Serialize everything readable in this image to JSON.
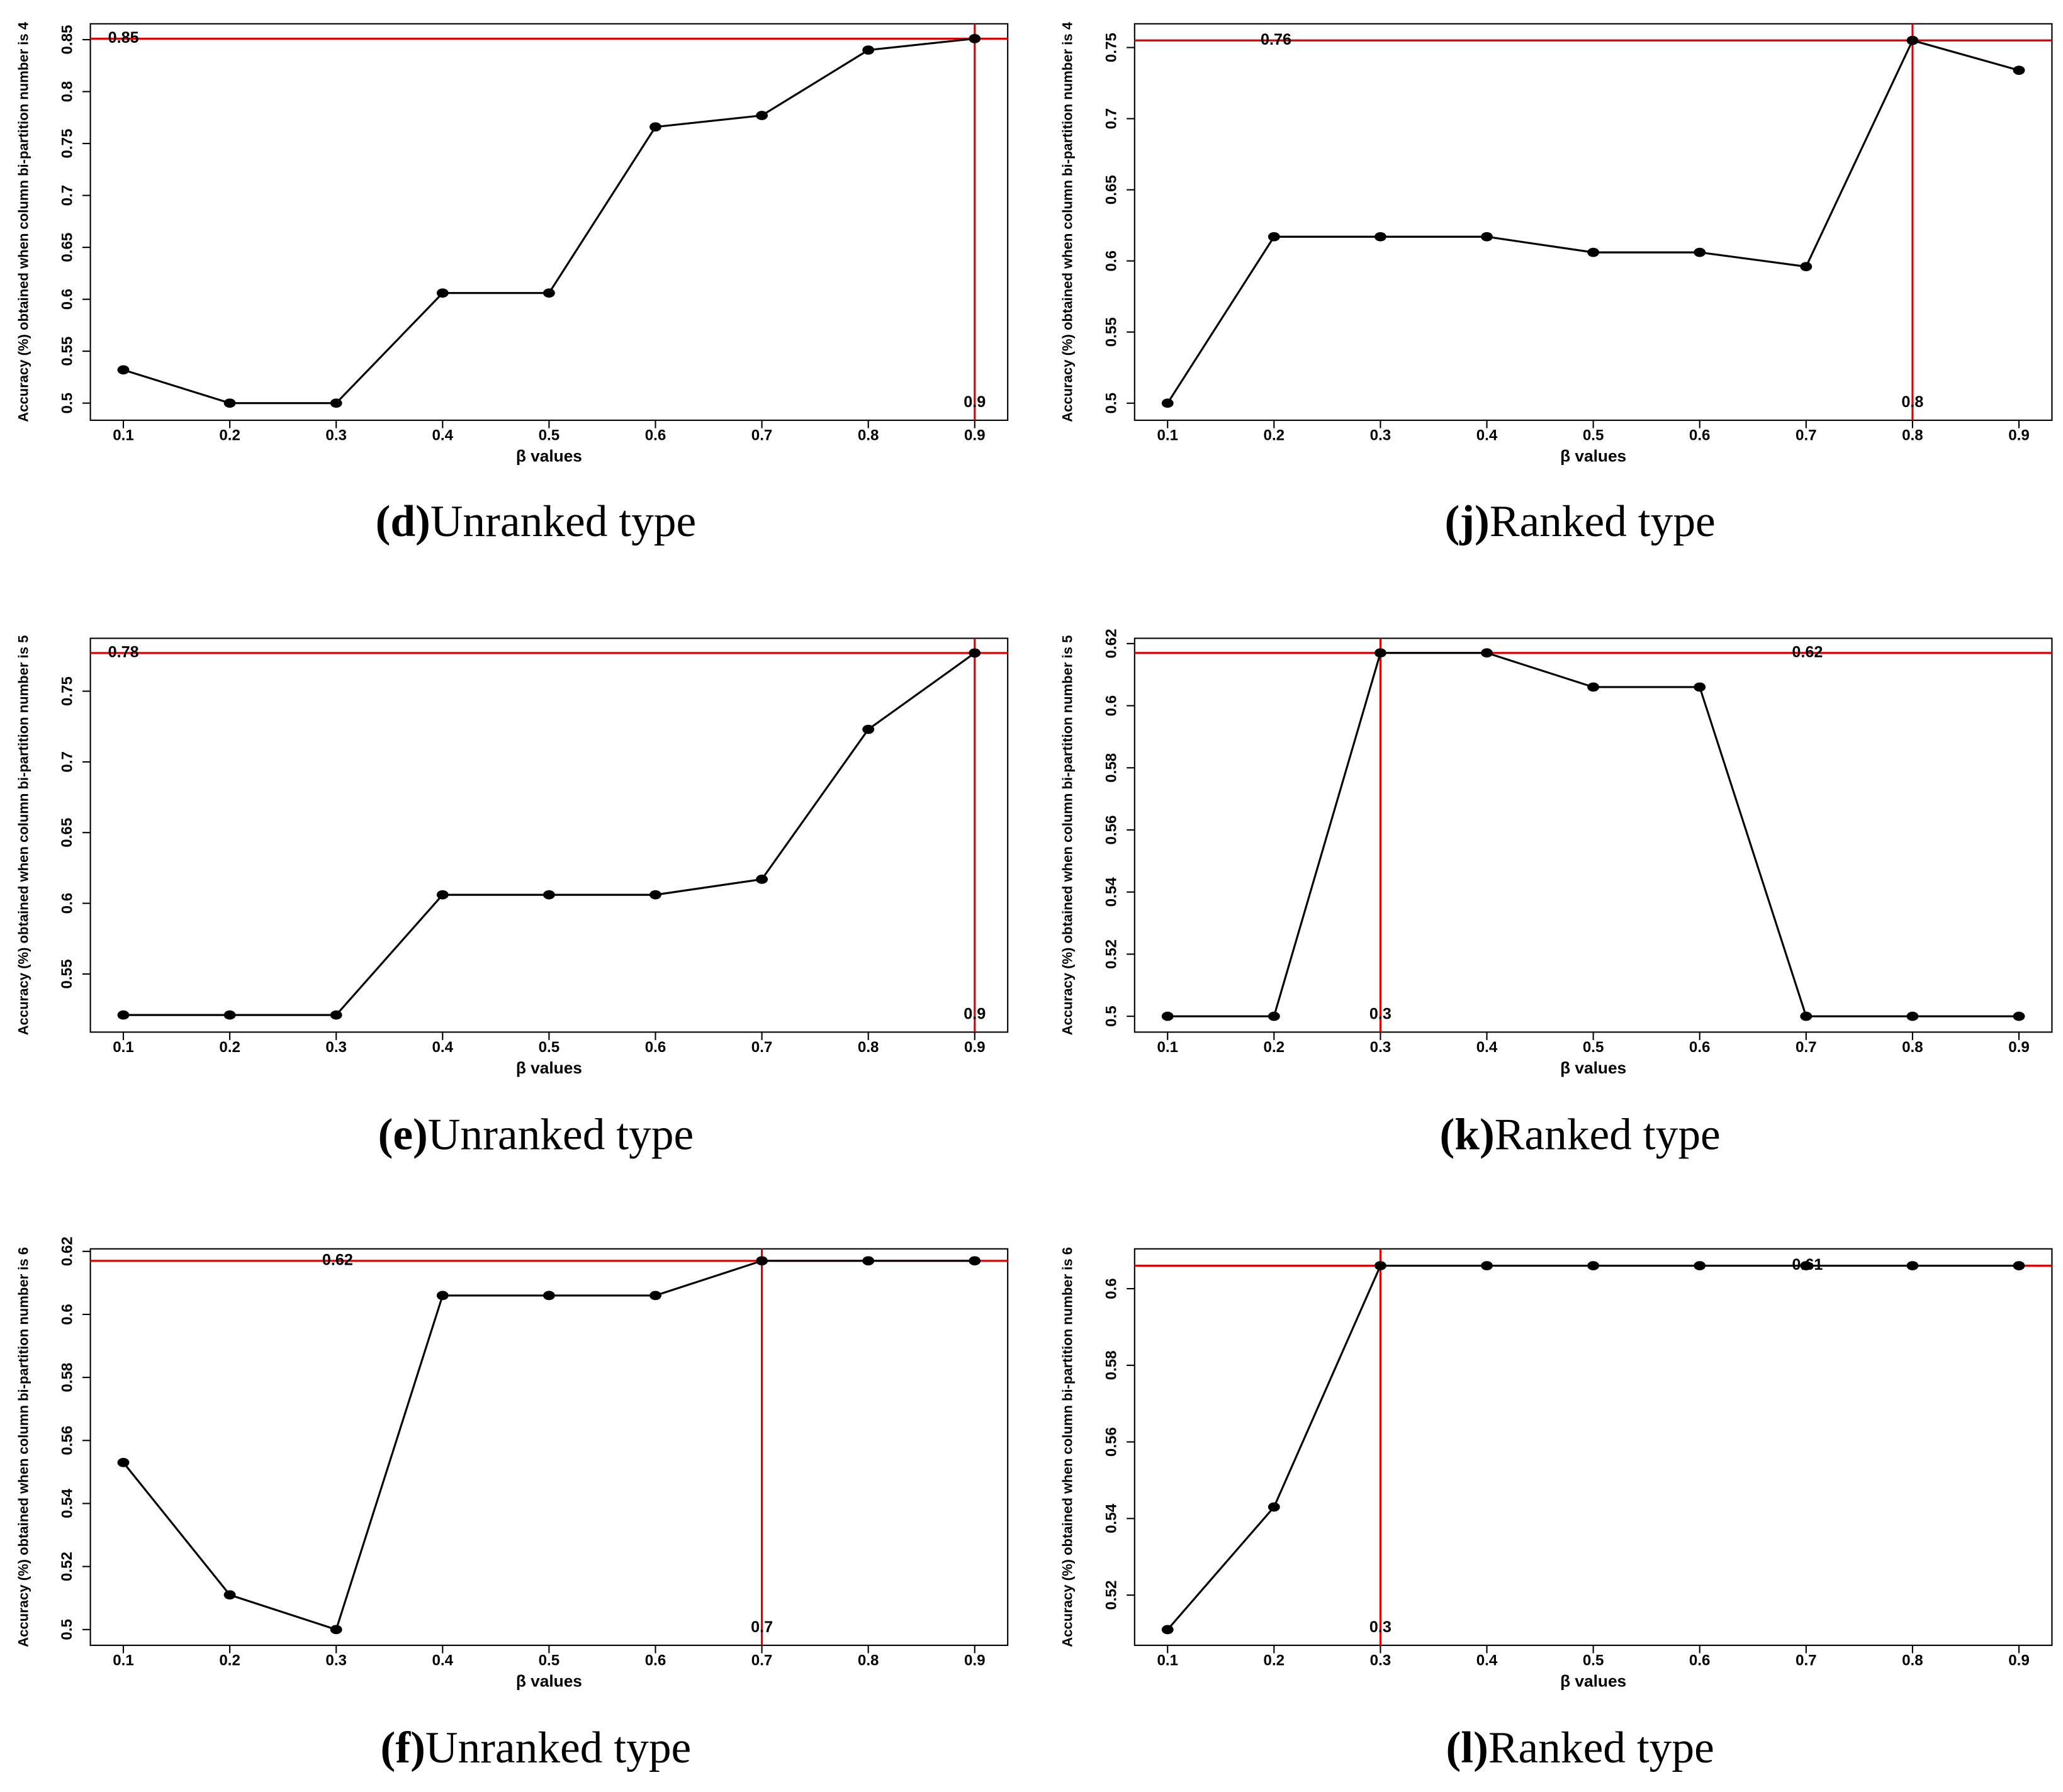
{
  "chart_data": [
    {
      "type": "line",
      "caption_letter": "(d)",
      "caption_text": "Unranked type",
      "ylabel": "Accuracy (%) obtained when column bi-partition number is 4",
      "xlabel": "β values",
      "x": [
        0.1,
        0.2,
        0.3,
        0.4,
        0.5,
        0.6,
        0.7,
        0.8,
        0.9
      ],
      "values": [
        0.532,
        0.5,
        0.5,
        0.606,
        0.606,
        0.766,
        0.777,
        0.84,
        0.851
      ],
      "xlim": [
        0.069,
        0.931
      ],
      "xticks": [
        0.1,
        0.2,
        0.3,
        0.4,
        0.5,
        0.6,
        0.7,
        0.8,
        0.9
      ],
      "ylim": [
        0.4835,
        0.8653
      ],
      "yticks": [
        0.5,
        0.55,
        0.6,
        0.65,
        0.7,
        0.75,
        0.8,
        0.85
      ],
      "hline": {
        "value": 0.851,
        "label": "0.85"
      },
      "vline": 0.9,
      "color": "#000000",
      "ref_color": "#e00000"
    },
    {
      "type": "line",
      "caption_letter": "(j)",
      "caption_text": "Ranked type",
      "ylabel": "Accuracy (%) obtained when column bi-partition number is 4",
      "xlabel": "β values",
      "x": [
        0.1,
        0.2,
        0.3,
        0.4,
        0.5,
        0.6,
        0.7,
        0.8,
        0.9
      ],
      "values": [
        0.5,
        0.617,
        0.617,
        0.617,
        0.606,
        0.606,
        0.596,
        0.755,
        0.734
      ],
      "xlim": [
        0.069,
        0.931
      ],
      "xticks": [
        0.1,
        0.2,
        0.3,
        0.4,
        0.5,
        0.6,
        0.7,
        0.8,
        0.9
      ],
      "ylim": [
        0.488,
        0.7667
      ],
      "yticks": [
        0.5,
        0.55,
        0.6,
        0.65,
        0.7,
        0.75
      ],
      "hline": {
        "value": 0.755,
        "label": "0.76"
      },
      "vline": 0.8,
      "color": "#000000",
      "ref_color": "#e00000"
    },
    {
      "type": "line",
      "caption_letter": "(e)",
      "caption_text": "Unranked type",
      "ylabel": "Accuracy (%) obtained when column bi-partition number is 5",
      "xlabel": "β values",
      "x": [
        0.1,
        0.2,
        0.3,
        0.4,
        0.5,
        0.6,
        0.7,
        0.8,
        0.9
      ],
      "values": [
        0.521,
        0.521,
        0.521,
        0.606,
        0.606,
        0.606,
        0.617,
        0.723,
        0.777
      ],
      "xlim": [
        0.069,
        0.931
      ],
      "xticks": [
        0.1,
        0.2,
        0.3,
        0.4,
        0.5,
        0.6,
        0.7,
        0.8,
        0.9
      ],
      "ylim": [
        0.5089,
        0.7874
      ],
      "yticks": [
        0.55,
        0.6,
        0.65,
        0.7,
        0.75
      ],
      "hline": {
        "value": 0.777,
        "label": "0.78"
      },
      "vline": 0.9,
      "color": "#000000",
      "ref_color": "#e00000"
    },
    {
      "type": "line",
      "caption_letter": "(k)",
      "caption_text": "Ranked type",
      "ylabel": "Accuracy (%) obtained when column bi-partition number is 5",
      "xlabel": "β values",
      "x": [
        0.1,
        0.2,
        0.3,
        0.4,
        0.5,
        0.6,
        0.7,
        0.8,
        0.9
      ],
      "values": [
        0.5,
        0.5,
        0.617,
        0.617,
        0.606,
        0.606,
        0.5,
        0.5,
        0.5
      ],
      "xlim": [
        0.069,
        0.931
      ],
      "xticks": [
        0.1,
        0.2,
        0.3,
        0.4,
        0.5,
        0.6,
        0.7,
        0.8,
        0.9
      ],
      "ylim": [
        0.4949,
        0.6217
      ],
      "yticks": [
        0.5,
        0.52,
        0.54,
        0.56,
        0.58,
        0.6,
        0.62
      ],
      "hline": {
        "value": 0.617,
        "label": "0.62"
      },
      "vline": 0.3,
      "color": "#000000",
      "ref_color": "#e00000"
    },
    {
      "type": "line",
      "caption_letter": "(f)",
      "caption_text": "Unranked type",
      "ylabel": "Accuracy (%) obtained when column bi-partition number is 6",
      "xlabel": "β values",
      "x": [
        0.1,
        0.2,
        0.3,
        0.4,
        0.5,
        0.6,
        0.7,
        0.8,
        0.9
      ],
      "values": [
        0.553,
        0.511,
        0.5,
        0.606,
        0.606,
        0.606,
        0.617,
        0.617,
        0.617
      ],
      "xlim": [
        0.069,
        0.931
      ],
      "xticks": [
        0.1,
        0.2,
        0.3,
        0.4,
        0.5,
        0.6,
        0.7,
        0.8,
        0.9
      ],
      "ylim": [
        0.495,
        0.6208
      ],
      "yticks": [
        0.5,
        0.52,
        0.54,
        0.56,
        0.58,
        0.6,
        0.62
      ],
      "hline": {
        "value": 0.617,
        "label": "0.62"
      },
      "vline": 0.7,
      "color": "#000000",
      "ref_color": "#e00000"
    },
    {
      "type": "line",
      "caption_letter": "(l)",
      "caption_text": "Ranked type",
      "ylabel": "Accuracy (%) obtained when column bi-partition number is 6",
      "xlabel": "β values",
      "x": [
        0.1,
        0.2,
        0.3,
        0.4,
        0.5,
        0.6,
        0.7,
        0.8,
        0.9
      ],
      "values": [
        0.511,
        0.543,
        0.606,
        0.606,
        0.606,
        0.606,
        0.606,
        0.606,
        0.606
      ],
      "xlim": [
        0.069,
        0.931
      ],
      "xticks": [
        0.1,
        0.2,
        0.3,
        0.4,
        0.5,
        0.6,
        0.7,
        0.8,
        0.9
      ],
      "ylim": [
        0.5069,
        0.6104
      ],
      "yticks": [
        0.52,
        0.54,
        0.56,
        0.58,
        0.6
      ],
      "hline": {
        "value": 0.606,
        "label": "0.61"
      },
      "vline": 0.3,
      "color": "#000000",
      "ref_color": "#e00000"
    }
  ]
}
